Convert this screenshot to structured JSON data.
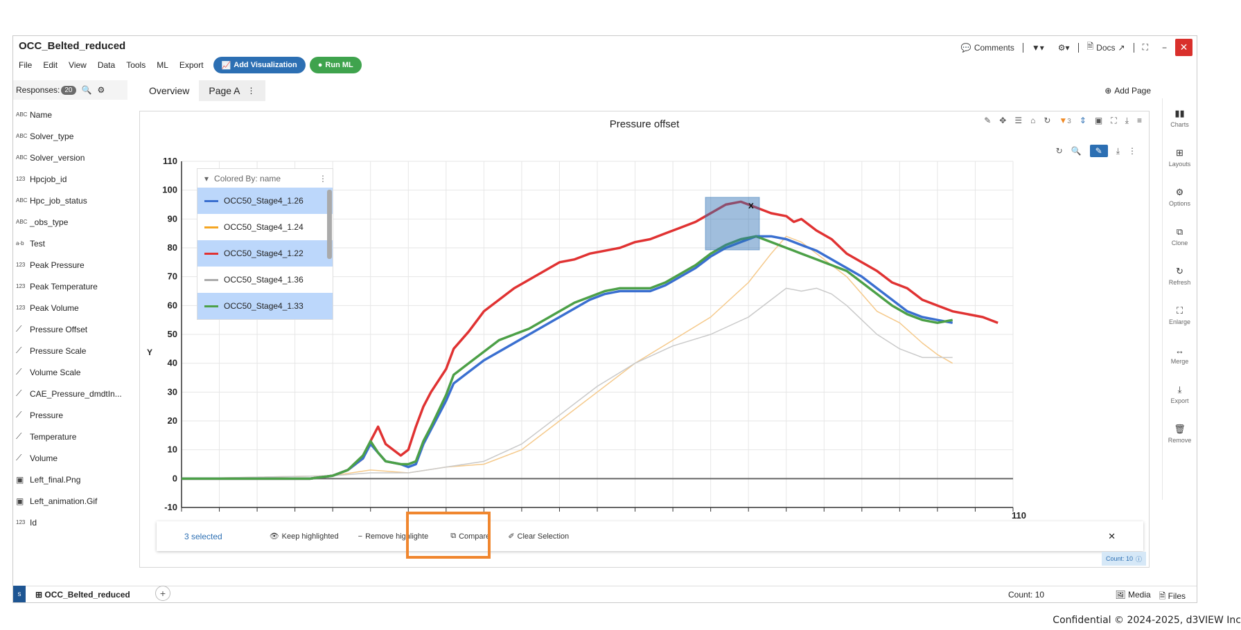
{
  "app": {
    "title": "OCC_Belted_reduced"
  },
  "window_controls": {
    "comments": "Comments",
    "docs": "Docs"
  },
  "menu": [
    "File",
    "Edit",
    "View",
    "Data",
    "Tools",
    "ML",
    "Export"
  ],
  "buttons": {
    "add_visualization": "Add Visualization",
    "run_ml": "Run ML"
  },
  "sidebar": {
    "header": "Responses:",
    "count": "20",
    "items": [
      {
        "type": "ABC",
        "label": "Name"
      },
      {
        "type": "ABC",
        "label": "Solver_type"
      },
      {
        "type": "ABC",
        "label": "Solver_version"
      },
      {
        "type": "123",
        "label": "Hpcjob_id"
      },
      {
        "type": "ABC",
        "label": "Hpc_job_status"
      },
      {
        "type": "ABC",
        "label": "_obs_type"
      },
      {
        "type": "a-b",
        "label": "Test"
      },
      {
        "type": "123",
        "label": "Peak Pressure"
      },
      {
        "type": "123",
        "label": "Peak Temperature"
      },
      {
        "type": "123",
        "label": "Peak Volume"
      },
      {
        "type": "curve",
        "label": "Pressure Offset"
      },
      {
        "type": "curve",
        "label": "Pressure Scale"
      },
      {
        "type": "curve",
        "label": "Volume Scale"
      },
      {
        "type": "curve",
        "label": "CAE_Pressure_dmdtIn..."
      },
      {
        "type": "curve",
        "label": "Pressure"
      },
      {
        "type": "curve",
        "label": "Temperature"
      },
      {
        "type": "curve",
        "label": "Volume"
      },
      {
        "type": "image",
        "label": "Left_final.Png"
      },
      {
        "type": "image",
        "label": "Left_animation.Gif"
      },
      {
        "type": "123",
        "label": "Id"
      }
    ]
  },
  "tabs": [
    {
      "label": "Overview"
    },
    {
      "label": "Page A"
    }
  ],
  "add_page": "Add Page",
  "filter_count": "3",
  "legend": {
    "header": "Colored By: name",
    "items": [
      {
        "label": "OCC50_Stage4_1.26",
        "color": "#3a6fd0",
        "selected": true
      },
      {
        "label": "OCC50_Stage4_1.24",
        "color": "#f5a623",
        "selected": false
      },
      {
        "label": "OCC50_Stage4_1.22",
        "color": "#e03232",
        "selected": true
      },
      {
        "label": "OCC50_Stage4_1.36",
        "color": "#aaaaaa",
        "selected": false
      },
      {
        "label": "OCC50_Stage4_1.33",
        "color": "#4ca047",
        "selected": true
      }
    ]
  },
  "right_rail": [
    "Charts",
    "Layouts",
    "Options",
    "Clone",
    "Refresh",
    "Enlarge",
    "Merge",
    "Export",
    "Remove"
  ],
  "selection_bar": {
    "count": "3 selected",
    "keep": "Keep highlighted",
    "remove": "Remove highlighte",
    "compare": "Compare",
    "clear": "Clear Selection"
  },
  "count_chip": "Count: 10",
  "statusbar": {
    "dataset": "OCC_Belted_reduced",
    "count": "Count: 10",
    "media": "Media",
    "files": "Files"
  },
  "copyright": "Confidential © 2024-2025, d3VIEW Inc",
  "chart_data": {
    "type": "line",
    "title": "Pressure offset",
    "ylabel": "Y",
    "xlabel": "",
    "ylim": [
      -10,
      110
    ],
    "xlim": [
      0,
      110
    ],
    "y_ticks": [
      "-10",
      "0",
      "10",
      "20",
      "30",
      "40",
      "50",
      "60",
      "70",
      "80",
      "90",
      "100",
      "110"
    ],
    "x_tick_visible": "110",
    "grid": true,
    "legend": "top-left",
    "series": [
      {
        "name": "OCC50_Stage4_1.22",
        "color": "#e03232",
        "highlight": true,
        "x": [
          0,
          17,
          20,
          22,
          24,
          25,
          26,
          27,
          29,
          30,
          31,
          32,
          33,
          35,
          36,
          38,
          40,
          42,
          44,
          46,
          48,
          50,
          52,
          54,
          56,
          58,
          60,
          62,
          64,
          66,
          68,
          70,
          72,
          74,
          76,
          78,
          80,
          81,
          82,
          84,
          86,
          88,
          90,
          92,
          94,
          96,
          98,
          100,
          102,
          104,
          106,
          108
        ],
        "y": [
          0,
          0,
          1,
          3,
          7,
          13,
          18,
          12,
          8,
          10,
          18,
          25,
          30,
          38,
          45,
          51,
          58,
          62,
          66,
          69,
          72,
          75,
          76,
          78,
          79,
          80,
          82,
          83,
          85,
          87,
          89,
          92,
          95,
          96,
          94,
          92,
          91,
          89,
          90,
          86,
          83,
          78,
          75,
          72,
          68,
          66,
          62,
          60,
          58,
          57,
          56,
          54
        ]
      },
      {
        "name": "OCC50_Stage4_1.26",
        "color": "#3a6fd0",
        "highlight": true,
        "x": [
          0,
          17,
          20,
          22,
          24,
          25,
          26,
          27,
          29,
          30,
          31,
          32,
          33,
          35,
          36,
          38,
          40,
          42,
          44,
          46,
          48,
          50,
          52,
          54,
          56,
          58,
          60,
          62,
          64,
          66,
          68,
          70,
          72,
          74,
          76,
          78,
          80,
          82,
          84,
          86,
          88,
          90,
          92,
          94,
          96,
          98,
          100,
          102
        ],
        "y": [
          0,
          0,
          1,
          3,
          7,
          12,
          9,
          6,
          5,
          4,
          5,
          12,
          17,
          27,
          33,
          37,
          41,
          44,
          47,
          50,
          53,
          56,
          59,
          62,
          64,
          65,
          65,
          65,
          67,
          70,
          73,
          77,
          80,
          82,
          84,
          84,
          83,
          81,
          79,
          76,
          73,
          70,
          66,
          62,
          58,
          56,
          55,
          54
        ]
      },
      {
        "name": "OCC50_Stage4_1.33",
        "color": "#4ca047",
        "highlight": true,
        "x": [
          0,
          17,
          20,
          22,
          24,
          25,
          26,
          27,
          29,
          30,
          31,
          32,
          33,
          35,
          36,
          38,
          40,
          42,
          44,
          46,
          48,
          50,
          52,
          54,
          56,
          58,
          60,
          62,
          64,
          66,
          68,
          70,
          72,
          74,
          76,
          78,
          80,
          82,
          84,
          86,
          88,
          90,
          92,
          94,
          96,
          98,
          100,
          102
        ],
        "y": [
          0,
          0,
          1,
          3,
          8,
          13,
          9,
          6,
          5,
          5,
          6,
          13,
          18,
          29,
          36,
          40,
          44,
          48,
          50,
          52,
          55,
          58,
          61,
          63,
          65,
          66,
          66,
          66,
          68,
          71,
          74,
          78,
          81,
          83,
          84,
          82,
          80,
          78,
          76,
          74,
          72,
          68,
          64,
          60,
          57,
          55,
          54,
          55
        ]
      },
      {
        "name": "OCC50_Stage4_1.24",
        "color": "#f5c98a",
        "highlight": false,
        "x": [
          0,
          20,
          25,
          30,
          35,
          40,
          45,
          50,
          55,
          60,
          65,
          70,
          75,
          78,
          80,
          82,
          84,
          86,
          88,
          90,
          92,
          95,
          98,
          100,
          102
        ],
        "y": [
          0,
          1,
          3,
          2,
          4,
          5,
          10,
          20,
          30,
          40,
          48,
          56,
          68,
          78,
          84,
          82,
          78,
          74,
          70,
          64,
          58,
          54,
          47,
          43,
          40
        ]
      },
      {
        "name": "OCC50_Stage4_1.36",
        "color": "#c9c9c9",
        "highlight": false,
        "x": [
          0,
          20,
          25,
          30,
          35,
          40,
          45,
          50,
          55,
          60,
          65,
          70,
          75,
          78,
          80,
          82,
          84,
          86,
          88,
          90,
          92,
          95,
          98,
          100,
          102
        ],
        "y": [
          0,
          1,
          2,
          2,
          4,
          6,
          12,
          22,
          32,
          40,
          46,
          50,
          56,
          62,
          66,
          65,
          66,
          64,
          60,
          55,
          50,
          45,
          42,
          42,
          42
        ]
      }
    ]
  }
}
